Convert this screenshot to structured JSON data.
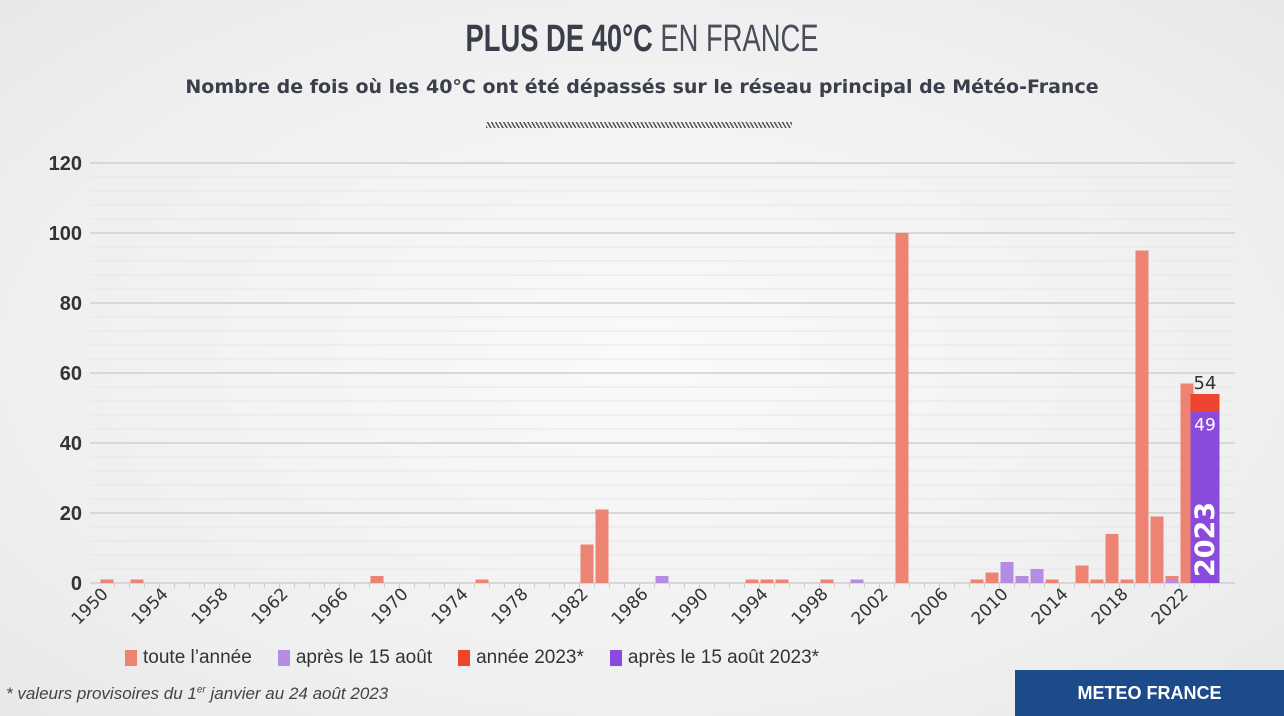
{
  "header": {
    "title_bold": "PLUS DE 40°C",
    "title_light": "EN FRANCE",
    "subtitle": "Nombre de fois où les 40°C ont été dépassés sur le réseau principal de Météo-France"
  },
  "chart_data": {
    "type": "bar",
    "title": "PLUS DE 40°C EN FRANCE",
    "xlabel": "",
    "ylabel": "",
    "ylim": [
      0,
      120
    ],
    "yticks": [
      0,
      20,
      40,
      60,
      80,
      100,
      120
    ],
    "xlim": [
      1950,
      2023
    ],
    "xticks": [
      1950,
      1954,
      1958,
      1962,
      1966,
      1970,
      1974,
      1978,
      1982,
      1986,
      1990,
      1994,
      1998,
      2002,
      2006,
      2010,
      2014,
      2018,
      2022
    ],
    "grid": true,
    "legend_placement": "bottom",
    "colors": {
      "toute_annee": "#ec8373",
      "apres_15_aout": "#b48ce2",
      "annee_2023": "#ee4530",
      "apres_15_aout_2023": "#8a4bdc"
    },
    "bars": [
      {
        "year": 1950,
        "total": 1,
        "after_aug15": 0
      },
      {
        "year": 1952,
        "total": 1,
        "after_aug15": 0
      },
      {
        "year": 1968,
        "total": 2,
        "after_aug15": 0
      },
      {
        "year": 1975,
        "total": 1,
        "after_aug15": 0
      },
      {
        "year": 1982,
        "total": 11,
        "after_aug15": 0
      },
      {
        "year": 1983,
        "total": 21,
        "after_aug15": 0
      },
      {
        "year": 1987,
        "total": 2,
        "after_aug15": 2
      },
      {
        "year": 1993,
        "total": 1,
        "after_aug15": 0
      },
      {
        "year": 1994,
        "total": 1,
        "after_aug15": 0
      },
      {
        "year": 1995,
        "total": 1,
        "after_aug15": 0
      },
      {
        "year": 1998,
        "total": 1,
        "after_aug15": 0
      },
      {
        "year": 2000,
        "total": 1,
        "after_aug15": 1
      },
      {
        "year": 2003,
        "total": 100,
        "after_aug15": 0
      },
      {
        "year": 2008,
        "total": 1,
        "after_aug15": 0
      },
      {
        "year": 2009,
        "total": 3,
        "after_aug15": 0
      },
      {
        "year": 2010,
        "total": 6,
        "after_aug15": 6
      },
      {
        "year": 2011,
        "total": 2,
        "after_aug15": 2
      },
      {
        "year": 2012,
        "total": 4,
        "after_aug15": 4
      },
      {
        "year": 2013,
        "total": 1,
        "after_aug15": 0
      },
      {
        "year": 2015,
        "total": 5,
        "after_aug15": 0
      },
      {
        "year": 2016,
        "total": 1,
        "after_aug15": 0
      },
      {
        "year": 2017,
        "total": 14,
        "after_aug15": 0
      },
      {
        "year": 2018,
        "total": 1,
        "after_aug15": 0
      },
      {
        "year": 2019,
        "total": 95,
        "after_aug15": 0
      },
      {
        "year": 2020,
        "total": 19,
        "after_aug15": 0
      },
      {
        "year": 2021,
        "total": 2,
        "after_aug15": 1
      },
      {
        "year": 2022,
        "total": 57,
        "after_aug15": 0
      }
    ],
    "highlight": {
      "year": 2023,
      "total": 54,
      "after_aug15": 49,
      "total_label": "54",
      "after_label": "49",
      "year_label": "2023"
    },
    "legend": [
      "toute l’année",
      "après le 15 août",
      "année 2023*",
      "après le 15 août 2023*"
    ]
  },
  "footnote": {
    "pre": "* valeurs provisoires du 1",
    "sup": "er",
    "post": " janvier au 24 août 2023"
  },
  "badge": "METEO FRANCE"
}
